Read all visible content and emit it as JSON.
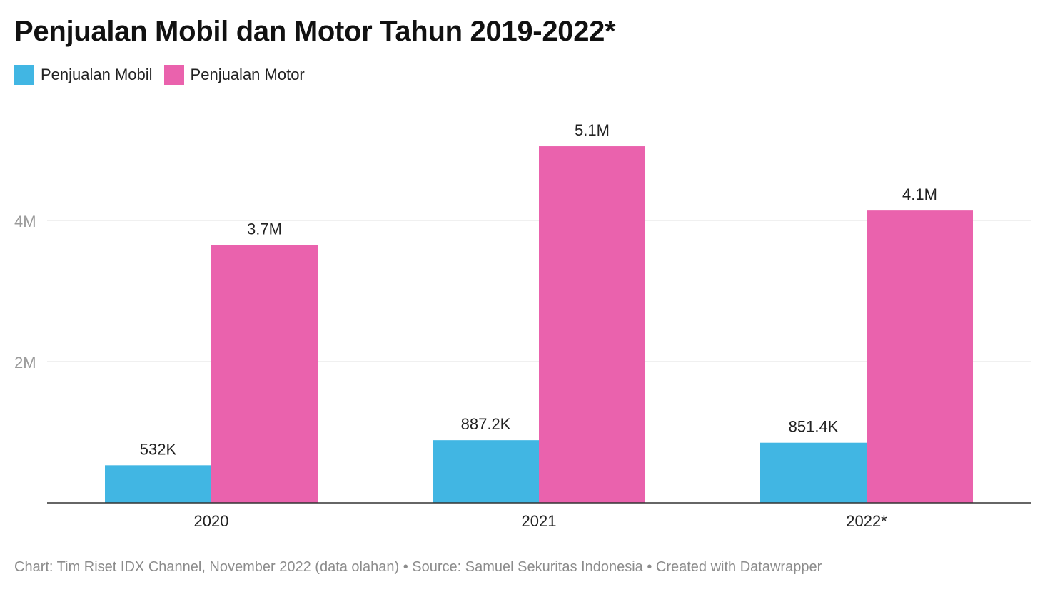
{
  "chart_data": {
    "type": "bar",
    "title": "Penjualan Mobil dan Motor Tahun 2019-2022*",
    "categories": [
      "2020",
      "2021",
      "2022*"
    ],
    "series": [
      {
        "name": "Penjualan Mobil",
        "color": "#41b6e3",
        "values": [
          532000,
          887200,
          851400
        ],
        "labels": [
          "532K",
          "887.2K",
          "851.4K"
        ]
      },
      {
        "name": "Penjualan Motor",
        "color": "#ea62ad",
        "values": [
          3650000,
          5050000,
          4140000
        ],
        "labels": [
          "3.7M",
          "5.1M",
          "4.1M"
        ]
      }
    ],
    "y_ticks": [
      {
        "value": 2000000,
        "label": "2M"
      },
      {
        "value": 4000000,
        "label": "4M"
      }
    ],
    "ylim": [
      0,
      5200000
    ],
    "grid": true,
    "legend_position": "top-left"
  },
  "footer": {
    "text": "Chart: Tim Riset IDX Channel, November 2022 (data olahan) • Source: Samuel Sekuritas Indonesia • Created with Datawrapper"
  }
}
